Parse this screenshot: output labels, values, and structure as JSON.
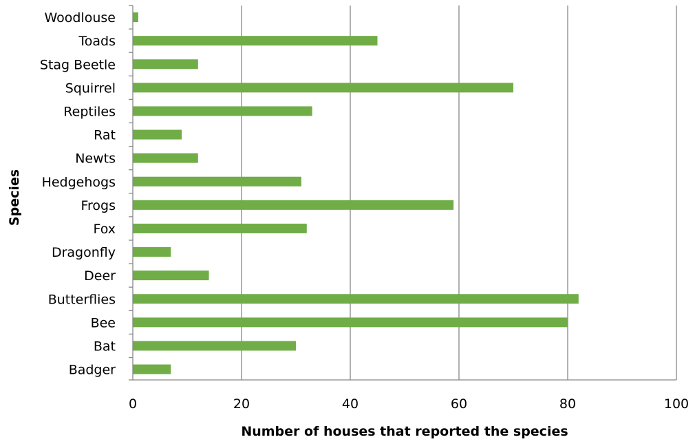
{
  "chart_data": {
    "type": "bar",
    "orientation": "horizontal",
    "title": "",
    "xlabel": "Number of houses that reported the species",
    "ylabel": "Species",
    "xlim": [
      0,
      100
    ],
    "x_ticks": [
      0,
      20,
      40,
      60,
      80,
      100
    ],
    "grid": "vertical major gridlines",
    "legend": "none",
    "bar_color": "#70AD47",
    "gridline_color": "#878787",
    "categories": [
      "Woodlouse",
      "Toads",
      "Stag Beetle",
      "Squirrel",
      "Reptiles",
      "Rat",
      "Newts",
      "Hedgehogs",
      "Frogs",
      "Fox",
      "Dragonfly",
      "Deer",
      "Butterflies",
      "Bee",
      "Bat",
      "Badger"
    ],
    "values": [
      1,
      45,
      12,
      70,
      33,
      9,
      12,
      31,
      59,
      32,
      7,
      14,
      82,
      80,
      30,
      7
    ]
  }
}
